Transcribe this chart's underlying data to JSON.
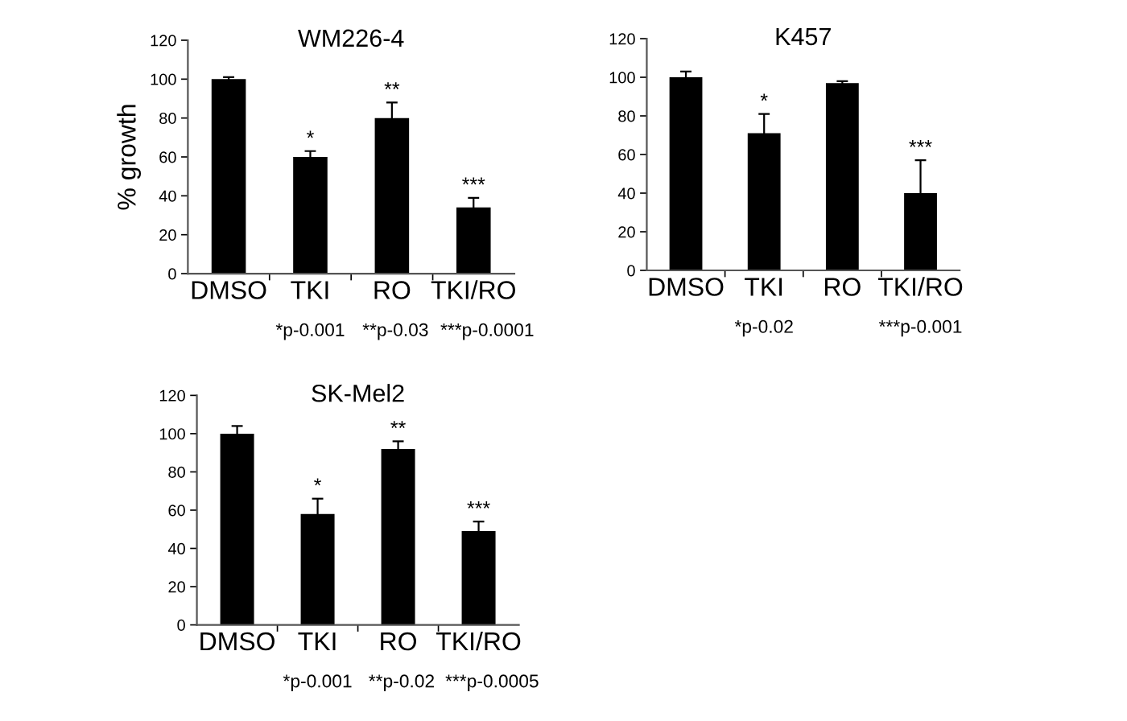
{
  "chart_data": [
    {
      "type": "bar",
      "title": "WM226-4",
      "ylabel": "% growth",
      "categories": [
        "DMSO",
        "TKI",
        "RO",
        "TKI/RO"
      ],
      "values": [
        100,
        60,
        80,
        34
      ],
      "errors": [
        1,
        3,
        8,
        5
      ],
      "color": "#000000",
      "ylim": [
        0,
        120
      ],
      "yticks": [
        0,
        20,
        40,
        60,
        80,
        100,
        120
      ],
      "annotations": [
        {
          "text": "*",
          "x": "TKI",
          "y": 63
        },
        {
          "text": "**",
          "x": "RO",
          "y": 88
        },
        {
          "text": "***",
          "x": "TKI/RO",
          "y": 39
        },
        "*p-0.001",
        "**p-0.03",
        "***p-0.0001"
      ]
    },
    {
      "type": "bar",
      "title": "K457",
      "categories": [
        "DMSO",
        "TKI",
        "RO",
        "TKI/RO"
      ],
      "values": [
        100,
        71,
        97,
        40
      ],
      "errors": [
        3,
        10,
        1,
        17
      ],
      "color": "#000000",
      "ylim": [
        0,
        120
      ],
      "yticks": [
        0,
        20,
        40,
        60,
        80,
        100,
        120
      ],
      "annotations": [
        {
          "text": "*",
          "x": "TKI",
          "y": 81
        },
        {
          "text": "***",
          "x": "TKI/RO",
          "y": 57
        },
        "*p-0.02",
        "***p-0.001"
      ]
    },
    {
      "type": "bar",
      "title": "SK-Mel2",
      "categories": [
        "DMSO",
        "TKI",
        "RO",
        "TKI/RO"
      ],
      "values": [
        100,
        58,
        92,
        49
      ],
      "errors": [
        4,
        8,
        4,
        5
      ],
      "color": "#000000",
      "ylim": [
        0,
        120
      ],
      "yticks": [
        0,
        20,
        40,
        60,
        80,
        100,
        120
      ],
      "annotations": [
        {
          "text": "*",
          "x": "TKI",
          "y": 66
        },
        {
          "text": "**",
          "x": "RO",
          "y": 96
        },
        {
          "text": "***",
          "x": "TKI/RO",
          "y": 54
        },
        "*p-0.001",
        "**p-0.02",
        "***p-0.0005"
      ]
    }
  ]
}
